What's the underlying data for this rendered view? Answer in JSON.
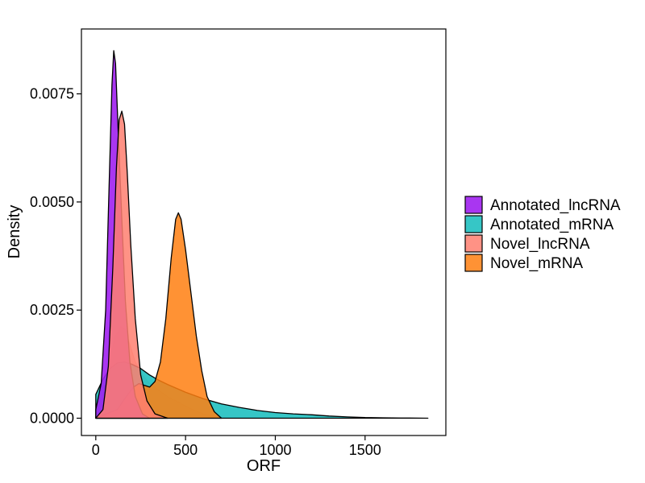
{
  "chart_data": {
    "type": "area",
    "title": "",
    "xlabel": "ORF",
    "ylabel": "Density",
    "xlim": [
      -80,
      1950
    ],
    "ylim": [
      -0.0004,
      0.009
    ],
    "xticks": [
      0,
      500,
      1000,
      1500
    ],
    "xtick_labels": [
      "0",
      "500",
      "1000",
      "1500"
    ],
    "yticks": [
      0.0,
      0.0025,
      0.005,
      0.0075
    ],
    "ytick_labels": [
      "0.0000",
      "0.0025",
      "0.0050",
      "0.0075"
    ],
    "grid": false,
    "legend_position": "right",
    "series": [
      {
        "name": "Annotated_lncRNA",
        "color": "#A020F0",
        "opacity": 0.9,
        "points": [
          [
            0,
            0.0002
          ],
          [
            30,
            0.0008
          ],
          [
            55,
            0.0025
          ],
          [
            75,
            0.0055
          ],
          [
            90,
            0.0077
          ],
          [
            100,
            0.0085
          ],
          [
            110,
            0.0082
          ],
          [
            125,
            0.0066
          ],
          [
            145,
            0.0046
          ],
          [
            165,
            0.0027
          ],
          [
            190,
            0.0013
          ],
          [
            220,
            0.0005
          ],
          [
            260,
            0.0001
          ],
          [
            300,
            0.0
          ]
        ]
      },
      {
        "name": "Annotated_mRNA",
        "color": "#20C0C0",
        "opacity": 0.9,
        "points": [
          [
            0,
            0.00055
          ],
          [
            40,
            0.0009
          ],
          [
            80,
            0.00115
          ],
          [
            120,
            0.00128
          ],
          [
            160,
            0.0013
          ],
          [
            200,
            0.00125
          ],
          [
            250,
            0.00115
          ],
          [
            300,
            0.001
          ],
          [
            350,
            0.00088
          ],
          [
            400,
            0.00078
          ],
          [
            500,
            0.0006
          ],
          [
            600,
            0.00045
          ],
          [
            700,
            0.00033
          ],
          [
            800,
            0.00025
          ],
          [
            900,
            0.00018
          ],
          [
            1000,
            0.00013
          ],
          [
            1100,
            0.0001
          ],
          [
            1200,
            8e-05
          ],
          [
            1300,
            5e-05
          ],
          [
            1400,
            3e-05
          ],
          [
            1500,
            1.5e-05
          ],
          [
            1600,
            1e-05
          ],
          [
            1700,
            5e-06
          ],
          [
            1850,
            0.0
          ]
        ]
      },
      {
        "name": "Novel_lncRNA",
        "color": "#FF7F70",
        "opacity": 0.85,
        "points": [
          [
            0,
            0.0
          ],
          [
            40,
            0.0002
          ],
          [
            70,
            0.0012
          ],
          [
            95,
            0.0035
          ],
          [
            115,
            0.0058
          ],
          [
            130,
            0.0069
          ],
          [
            145,
            0.0071
          ],
          [
            160,
            0.0068
          ],
          [
            175,
            0.0057
          ],
          [
            195,
            0.004
          ],
          [
            220,
            0.0023
          ],
          [
            250,
            0.001
          ],
          [
            285,
            0.0004
          ],
          [
            330,
            0.0001
          ],
          [
            400,
            0.0
          ]
        ]
      },
      {
        "name": "Novel_mRNA",
        "color": "#FF7F10",
        "opacity": 0.85,
        "points": [
          [
            0,
            0.0
          ],
          [
            60,
            0.0001
          ],
          [
            120,
            0.0002
          ],
          [
            170,
            0.0005
          ],
          [
            210,
            0.00072
          ],
          [
            240,
            0.0008
          ],
          [
            270,
            0.00076
          ],
          [
            300,
            0.00072
          ],
          [
            330,
            0.00085
          ],
          [
            360,
            0.0013
          ],
          [
            390,
            0.0023
          ],
          [
            420,
            0.0037
          ],
          [
            445,
            0.0046
          ],
          [
            460,
            0.00475
          ],
          [
            475,
            0.0046
          ],
          [
            500,
            0.0039
          ],
          [
            530,
            0.0029
          ],
          [
            560,
            0.0019
          ],
          [
            590,
            0.0011
          ],
          [
            620,
            0.0005
          ],
          [
            660,
            0.00015
          ],
          [
            700,
            0.0
          ]
        ]
      }
    ],
    "secondary_curves": [
      {
        "name": "",
        "color": "#FF7F70",
        "opacity": 0.45,
        "points": [
          [
            0,
            0.0002
          ],
          [
            40,
            0.0006
          ],
          [
            80,
            0.0014
          ],
          [
            110,
            0.0019
          ],
          [
            140,
            0.00212
          ],
          [
            165,
            0.00205
          ],
          [
            190,
            0.0017
          ],
          [
            220,
            0.0013
          ],
          [
            260,
            0.001
          ],
          [
            300,
            0.0008
          ],
          [
            350,
            0.00065
          ],
          [
            400,
            0.0005
          ],
          [
            450,
            0.0004
          ],
          [
            500,
            0.00028
          ],
          [
            550,
            0.00018
          ],
          [
            600,
            0.0001
          ],
          [
            650,
            5e-05
          ],
          [
            700,
            0.0
          ]
        ]
      }
    ]
  }
}
